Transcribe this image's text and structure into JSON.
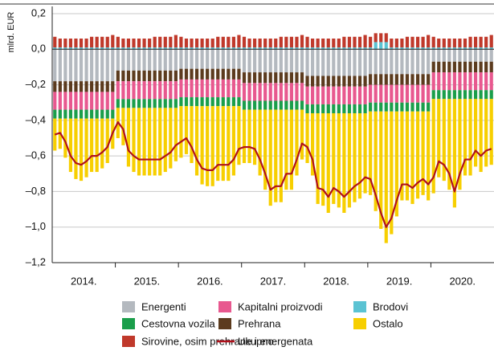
{
  "chart_data": {
    "type": "bar",
    "y_axis_label": "mlrd. EUR",
    "ylim": [
      -1.2,
      0.2
    ],
    "yticks": [
      {
        "value": 0.2,
        "label": "0,2"
      },
      {
        "value": 0.0,
        "label": "0,0"
      },
      {
        "value": -0.2,
        "label": "–0,2"
      },
      {
        "value": -0.4,
        "label": "–0,4"
      },
      {
        "value": -0.6,
        "label": "–0,6"
      },
      {
        "value": -0.8,
        "label": "–0,8"
      },
      {
        "value": -1.0,
        "label": "–1,0"
      },
      {
        "value": -1.2,
        "label": "–1,2"
      }
    ],
    "grid": true,
    "stacked": true,
    "x_group_labels": [
      "2014.",
      "2015.",
      "2016.",
      "2017.",
      "2018.",
      "2019.",
      "2020."
    ],
    "categories": [
      null,
      null,
      null,
      null,
      null,
      null,
      null,
      null,
      null,
      null,
      null,
      null,
      null,
      null,
      null,
      null,
      null,
      null,
      null,
      null,
      null,
      null,
      null,
      null,
      null,
      null,
      null,
      null,
      null,
      null,
      null,
      null,
      null,
      null,
      null,
      null,
      null,
      null,
      null,
      null,
      null,
      null,
      null,
      null,
      null,
      null,
      null,
      null,
      null,
      null,
      null,
      null,
      null,
      null,
      null,
      null,
      null,
      null,
      null,
      null,
      null,
      null,
      null,
      null,
      null,
      null,
      null,
      null,
      null,
      null,
      null,
      null,
      null,
      null,
      null,
      null,
      null,
      null,
      null,
      null,
      null,
      null,
      null,
      null
    ],
    "series": [
      {
        "name": "Energenti",
        "color": "#b4b9bf",
        "values": [
          -0.18,
          -0.18,
          -0.18,
          -0.18,
          -0.18,
          -0.18,
          -0.18,
          -0.18,
          -0.18,
          -0.18,
          -0.18,
          -0.18,
          -0.12,
          -0.12,
          -0.12,
          -0.12,
          -0.12,
          -0.12,
          -0.12,
          -0.12,
          -0.12,
          -0.12,
          -0.12,
          -0.12,
          -0.11,
          -0.11,
          -0.11,
          -0.11,
          -0.11,
          -0.11,
          -0.11,
          -0.11,
          -0.11,
          -0.11,
          -0.11,
          -0.11,
          -0.13,
          -0.13,
          -0.13,
          -0.13,
          -0.13,
          -0.13,
          -0.13,
          -0.13,
          -0.13,
          -0.13,
          -0.13,
          -0.13,
          -0.15,
          -0.15,
          -0.15,
          -0.15,
          -0.15,
          -0.15,
          -0.15,
          -0.15,
          -0.15,
          -0.15,
          -0.15,
          -0.15,
          -0.14,
          -0.14,
          -0.14,
          -0.14,
          -0.14,
          -0.14,
          -0.14,
          -0.14,
          -0.14,
          -0.14,
          -0.14,
          -0.14,
          -0.07,
          -0.07,
          -0.07,
          -0.07,
          -0.07,
          -0.07,
          -0.07,
          -0.07,
          -0.07,
          -0.07,
          -0.07,
          -0.07
        ]
      },
      {
        "name": "Prehrana",
        "color": "#5c3b1e",
        "values": [
          -0.06,
          -0.06,
          -0.06,
          -0.06,
          -0.06,
          -0.06,
          -0.06,
          -0.06,
          -0.06,
          -0.06,
          -0.06,
          -0.06,
          -0.06,
          -0.06,
          -0.06,
          -0.06,
          -0.06,
          -0.06,
          -0.06,
          -0.06,
          -0.06,
          -0.06,
          -0.06,
          -0.06,
          -0.06,
          -0.06,
          -0.06,
          -0.06,
          -0.06,
          -0.06,
          -0.06,
          -0.06,
          -0.06,
          -0.06,
          -0.06,
          -0.06,
          -0.06,
          -0.06,
          -0.06,
          -0.06,
          -0.06,
          -0.06,
          -0.06,
          -0.06,
          -0.06,
          -0.06,
          -0.06,
          -0.06,
          -0.06,
          -0.06,
          -0.06,
          -0.06,
          -0.06,
          -0.06,
          -0.06,
          -0.06,
          -0.06,
          -0.06,
          -0.06,
          -0.06,
          -0.06,
          -0.06,
          -0.06,
          -0.06,
          -0.06,
          -0.06,
          -0.06,
          -0.06,
          -0.06,
          -0.06,
          -0.06,
          -0.06,
          -0.06,
          -0.06,
          -0.06,
          -0.06,
          -0.06,
          -0.06,
          -0.06,
          -0.06,
          -0.06,
          -0.06,
          -0.06,
          -0.06
        ]
      },
      {
        "name": "Kapitalni proizvodi",
        "color": "#e8588f",
        "values": [
          -0.1,
          -0.1,
          -0.1,
          -0.1,
          -0.1,
          -0.1,
          -0.1,
          -0.1,
          -0.1,
          -0.1,
          -0.1,
          -0.1,
          -0.1,
          -0.1,
          -0.1,
          -0.1,
          -0.1,
          -0.1,
          -0.1,
          -0.1,
          -0.1,
          -0.1,
          -0.1,
          -0.1,
          -0.1,
          -0.1,
          -0.1,
          -0.1,
          -0.1,
          -0.1,
          -0.1,
          -0.1,
          -0.1,
          -0.1,
          -0.1,
          -0.1,
          -0.1,
          -0.1,
          -0.1,
          -0.1,
          -0.1,
          -0.1,
          -0.1,
          -0.1,
          -0.1,
          -0.1,
          -0.1,
          -0.1,
          -0.1,
          -0.1,
          -0.1,
          -0.1,
          -0.1,
          -0.1,
          -0.1,
          -0.1,
          -0.1,
          -0.1,
          -0.1,
          -0.1,
          -0.1,
          -0.1,
          -0.1,
          -0.1,
          -0.1,
          -0.1,
          -0.1,
          -0.1,
          -0.1,
          -0.1,
          -0.1,
          -0.1,
          -0.1,
          -0.1,
          -0.1,
          -0.1,
          -0.1,
          -0.1,
          -0.1,
          -0.1,
          -0.1,
          -0.1,
          -0.1,
          -0.1
        ]
      },
      {
        "name": "Cestovna vozila",
        "color": "#1a9e4b",
        "values": [
          -0.05,
          -0.05,
          -0.05,
          -0.05,
          -0.05,
          -0.05,
          -0.05,
          -0.05,
          -0.05,
          -0.05,
          -0.05,
          -0.05,
          -0.05,
          -0.05,
          -0.05,
          -0.05,
          -0.05,
          -0.05,
          -0.05,
          -0.05,
          -0.05,
          -0.05,
          -0.05,
          -0.05,
          -0.05,
          -0.05,
          -0.05,
          -0.05,
          -0.05,
          -0.05,
          -0.05,
          -0.05,
          -0.05,
          -0.05,
          -0.05,
          -0.05,
          -0.05,
          -0.05,
          -0.05,
          -0.05,
          -0.05,
          -0.05,
          -0.05,
          -0.05,
          -0.05,
          -0.05,
          -0.05,
          -0.05,
          -0.05,
          -0.05,
          -0.05,
          -0.05,
          -0.05,
          -0.05,
          -0.05,
          -0.05,
          -0.05,
          -0.05,
          -0.05,
          -0.05,
          -0.05,
          -0.05,
          -0.05,
          -0.05,
          -0.05,
          -0.05,
          -0.05,
          -0.05,
          -0.05,
          -0.05,
          -0.05,
          -0.05,
          -0.05,
          -0.05,
          -0.05,
          -0.05,
          -0.05,
          -0.05,
          -0.05,
          -0.05,
          -0.05,
          -0.05,
          -0.05,
          -0.05
        ]
      },
      {
        "name": "Ostalo",
        "color": "#f7cf00",
        "values": [
          -0.18,
          -0.17,
          -0.22,
          -0.3,
          -0.34,
          -0.35,
          -0.33,
          -0.3,
          -0.3,
          -0.28,
          -0.25,
          -0.17,
          -0.17,
          -0.21,
          -0.33,
          -0.36,
          -0.38,
          -0.38,
          -0.38,
          -0.38,
          -0.38,
          -0.36,
          -0.34,
          -0.3,
          -0.29,
          -0.27,
          -0.32,
          -0.39,
          -0.44,
          -0.45,
          -0.45,
          -0.42,
          -0.42,
          -0.42,
          -0.39,
          -0.33,
          -0.3,
          -0.3,
          -0.31,
          -0.37,
          -0.45,
          -0.54,
          -0.52,
          -0.52,
          -0.45,
          -0.45,
          -0.37,
          -0.28,
          -0.28,
          -0.35,
          -0.51,
          -0.52,
          -0.56,
          -0.51,
          -0.53,
          -0.56,
          -0.53,
          -0.5,
          -0.48,
          -0.45,
          -0.47,
          -0.56,
          -0.66,
          -0.74,
          -0.69,
          -0.59,
          -0.5,
          -0.5,
          -0.52,
          -0.49,
          -0.47,
          -0.5,
          -0.53,
          -0.44,
          -0.46,
          -0.51,
          -0.61,
          -0.51,
          -0.43,
          -0.43,
          -0.38,
          -0.41,
          -0.38,
          -0.37
        ]
      },
      {
        "name": "Brodovi",
        "color": "#5bc3d3",
        "values": [
          0.01,
          0.01,
          0.01,
          0.01,
          0.01,
          0.01,
          0.01,
          0.01,
          0.01,
          0.01,
          0.01,
          0.01,
          0.01,
          0.01,
          0.01,
          0.01,
          0.01,
          0.01,
          0.01,
          0.01,
          0.01,
          0.01,
          0.01,
          0.01,
          0.01,
          0.01,
          0.01,
          0.01,
          0.01,
          0.01,
          0.01,
          0.01,
          0.01,
          0.01,
          0.01,
          0.01,
          0.01,
          0.01,
          0.01,
          0.01,
          0.01,
          0.01,
          0.01,
          0.01,
          0.01,
          0.01,
          0.01,
          0.01,
          0.01,
          0.01,
          0.01,
          0.01,
          0.01,
          0.01,
          0.01,
          0.01,
          0.01,
          0.01,
          0.01,
          0.01,
          0.01,
          0.04,
          0.04,
          0.04,
          0.01,
          0.01,
          0.01,
          0.01,
          0.01,
          0.01,
          0.01,
          0.01,
          0.01,
          0.01,
          0.01,
          0.01,
          0.01,
          0.01,
          0.01,
          0.01,
          0.01,
          0.01,
          0.01,
          0.01
        ]
      },
      {
        "name": "Sirovine, osim prehrane i energenata",
        "color": "#c0392b",
        "values": [
          0.06,
          0.05,
          0.05,
          0.05,
          0.05,
          0.05,
          0.05,
          0.06,
          0.06,
          0.06,
          0.06,
          0.07,
          0.06,
          0.05,
          0.05,
          0.05,
          0.05,
          0.05,
          0.05,
          0.06,
          0.06,
          0.06,
          0.06,
          0.07,
          0.06,
          0.05,
          0.05,
          0.05,
          0.05,
          0.05,
          0.05,
          0.06,
          0.06,
          0.06,
          0.06,
          0.07,
          0.06,
          0.05,
          0.05,
          0.05,
          0.05,
          0.05,
          0.05,
          0.06,
          0.06,
          0.06,
          0.06,
          0.07,
          0.06,
          0.05,
          0.05,
          0.05,
          0.05,
          0.05,
          0.05,
          0.06,
          0.06,
          0.06,
          0.06,
          0.07,
          0.06,
          0.05,
          0.05,
          0.05,
          0.05,
          0.05,
          0.05,
          0.06,
          0.06,
          0.06,
          0.06,
          0.07,
          0.06,
          0.05,
          0.05,
          0.05,
          0.05,
          0.05,
          0.05,
          0.06,
          0.06,
          0.06,
          0.06,
          0.07
        ]
      },
      {
        "name": "Ukupno",
        "color": "#b0101a",
        "type": "line",
        "values": [
          -0.48,
          -0.47,
          -0.52,
          -0.6,
          -0.64,
          -0.65,
          -0.63,
          -0.6,
          -0.6,
          -0.58,
          -0.55,
          -0.47,
          -0.41,
          -0.45,
          -0.57,
          -0.6,
          -0.62,
          -0.62,
          -0.62,
          -0.62,
          -0.62,
          -0.6,
          -0.58,
          -0.54,
          -0.52,
          -0.5,
          -0.55,
          -0.62,
          -0.67,
          -0.68,
          -0.68,
          -0.65,
          -0.65,
          -0.65,
          -0.62,
          -0.56,
          -0.55,
          -0.55,
          -0.56,
          -0.62,
          -0.7,
          -0.79,
          -0.77,
          -0.77,
          -0.7,
          -0.7,
          -0.62,
          -0.53,
          -0.55,
          -0.62,
          -0.78,
          -0.79,
          -0.83,
          -0.78,
          -0.8,
          -0.83,
          -0.8,
          -0.77,
          -0.75,
          -0.72,
          -0.73,
          -0.82,
          -0.92,
          -1.0,
          -0.95,
          -0.85,
          -0.76,
          -0.76,
          -0.78,
          -0.75,
          -0.73,
          -0.76,
          -0.72,
          -0.63,
          -0.65,
          -0.7,
          -0.8,
          -0.7,
          -0.62,
          -0.62,
          -0.57,
          -0.6,
          -0.57,
          -0.56
        ]
      }
    ]
  }
}
